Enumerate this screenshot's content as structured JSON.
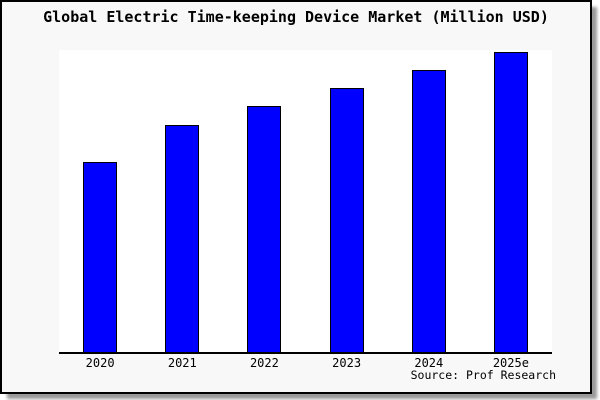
{
  "title": "Global Electric Time-keeping Device Market (Million USD)",
  "source": "Source: Prof Research",
  "colors": {
    "bar_fill": "#0000ff",
    "bar_edge": "#000000",
    "frame_background": "#f8f8f8",
    "plot_background": "#ffffff",
    "axis": "#000000",
    "frame_border": "#000000",
    "shadow": "#9a9a9a"
  },
  "chart_data": {
    "type": "bar",
    "title": "Global Electric Time-keeping Device Market (Million USD)",
    "categories": [
      "2020",
      "2021",
      "2022",
      "2023",
      "2024",
      "2025e"
    ],
    "values": [
      63,
      75,
      81.5,
      87.5,
      93.5,
      99.5
    ],
    "units": "Million USD",
    "xlabel": "",
    "ylabel": "",
    "ylim": [
      0,
      100
    ],
    "y_axis_visible": false,
    "grid": false,
    "legend": false,
    "note": "No numeric y-axis is shown in the image; values are relative height estimates indexed to 2025e ~ 100."
  }
}
